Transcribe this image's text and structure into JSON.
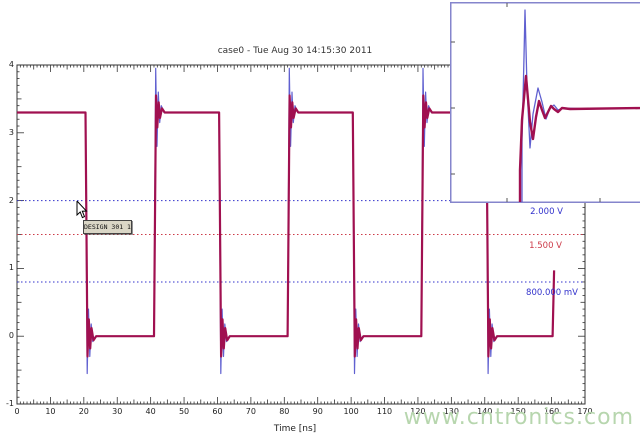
{
  "watermark": {
    "text": "www.cntronics.com"
  },
  "tooltip": {
    "label": "DESIGN 301 1"
  },
  "colors": {
    "axis": "#333333",
    "trace_red": "#a01050",
    "trace_blue": "#6060d0",
    "ref_blue": "#3232cc",
    "ref_red": "#cc3a48",
    "inset_border": "#8585cc",
    "inset_tick": "#555555",
    "watermark": "#b7d6ae",
    "tooltip_bg": "#dad6c6"
  },
  "chart_data": {
    "type": "line",
    "title": "case0 - Tue Aug 30 14:15:30 2011",
    "xlabel": "Time [ns]",
    "ylabel": "",
    "xlim": [
      0,
      170
    ],
    "ylim": [
      -1,
      4
    ],
    "grid": false,
    "legend": "none",
    "x_ticks": [
      0,
      10,
      20,
      30,
      40,
      50,
      60,
      70,
      80,
      90,
      100,
      110,
      120,
      130,
      140,
      150,
      160,
      170
    ],
    "y_ticks": [
      4,
      3,
      2,
      1,
      0,
      -1
    ],
    "reference_lines": [
      {
        "value": 2.0,
        "label": "2.000 V",
        "color": "#3232cc"
      },
      {
        "value": 1.5,
        "label": "1.500 V",
        "color": "#cc3a48"
      },
      {
        "value": 0.8,
        "label": "800.000 mV",
        "color": "#3232cc"
      }
    ],
    "signal": {
      "description": "square wave, two overlaid traces (fast blue with large ringing, damped thick red)",
      "high": 3.3,
      "low": 0,
      "fall_times": [
        20.5,
        60.5,
        100.5,
        140.5
      ],
      "rise_times": [
        41,
        81,
        121
      ],
      "end_stub": {
        "t": 160.3,
        "v": 0.97
      },
      "overshoot": {
        "blue": 3.95,
        "red": 3.55
      },
      "undershoot": {
        "blue": -0.55,
        "red": -0.3
      },
      "ring": {
        "red_rise": [
          [
            0,
            0
          ],
          [
            0.6,
            3.55
          ],
          [
            1.0,
            3.08
          ],
          [
            1.4,
            3.45
          ],
          [
            1.8,
            3.22
          ],
          [
            2.4,
            3.36
          ],
          [
            3.2,
            3.3
          ]
        ],
        "red_fall": [
          [
            0,
            3.3
          ],
          [
            0.6,
            -0.3
          ],
          [
            1.0,
            0.25
          ],
          [
            1.4,
            -0.18
          ],
          [
            1.8,
            0.12
          ],
          [
            2.4,
            -0.06
          ],
          [
            3.2,
            0
          ]
        ],
        "blue_rise": [
          [
            0,
            0
          ],
          [
            0.5,
            3.95
          ],
          [
            0.9,
            2.8
          ],
          [
            1.3,
            3.6
          ],
          [
            1.7,
            3.15
          ],
          [
            2.2,
            3.4
          ],
          [
            3.0,
            3.3
          ]
        ],
        "blue_fall": [
          [
            0,
            3.3
          ],
          [
            0.5,
            -0.55
          ],
          [
            0.9,
            0.4
          ],
          [
            1.3,
            -0.3
          ],
          [
            1.7,
            0.18
          ],
          [
            2.2,
            -0.08
          ],
          [
            3.0,
            0
          ]
        ]
      },
      "stub_shape": {
        "red": [
          [
            0,
            0
          ],
          [
            0.45,
            0.97
          ]
        ],
        "blue": [
          [
            0,
            0
          ],
          [
            0.4,
            0.9
          ]
        ]
      }
    },
    "inset": {
      "content": "zoomed rising edge showing overshoot and ringing of both traces",
      "red_points": [
        [
          70,
          200
        ],
        [
          70,
          168
        ],
        [
          72,
          118
        ],
        [
          76,
          74
        ],
        [
          80,
          120
        ],
        [
          83,
          137
        ],
        [
          86,
          115
        ],
        [
          89,
          99
        ],
        [
          92,
          108
        ],
        [
          95,
          116
        ],
        [
          98,
          110
        ],
        [
          101,
          104
        ],
        [
          104,
          107
        ],
        [
          108,
          110
        ],
        [
          112,
          106
        ],
        [
          120,
          107
        ],
        [
          194,
          106
        ]
      ],
      "blue_points": [
        [
          72,
          200
        ],
        [
          72,
          140
        ],
        [
          74,
          55
        ],
        [
          75,
          8
        ],
        [
          77,
          85
        ],
        [
          80,
          146
        ],
        [
          83,
          112
        ],
        [
          88,
          86
        ],
        [
          92,
          100
        ],
        [
          96,
          117
        ],
        [
          100,
          106
        ],
        [
          104,
          103
        ],
        [
          108,
          108
        ],
        [
          114,
          106
        ],
        [
          140,
          107
        ],
        [
          194,
          106
        ]
      ],
      "left_tick_ys": [
        40,
        106,
        172
      ],
      "top_tick_xs": [
        57
      ],
      "bottom_tick_xs": [
        57,
        150
      ]
    }
  }
}
